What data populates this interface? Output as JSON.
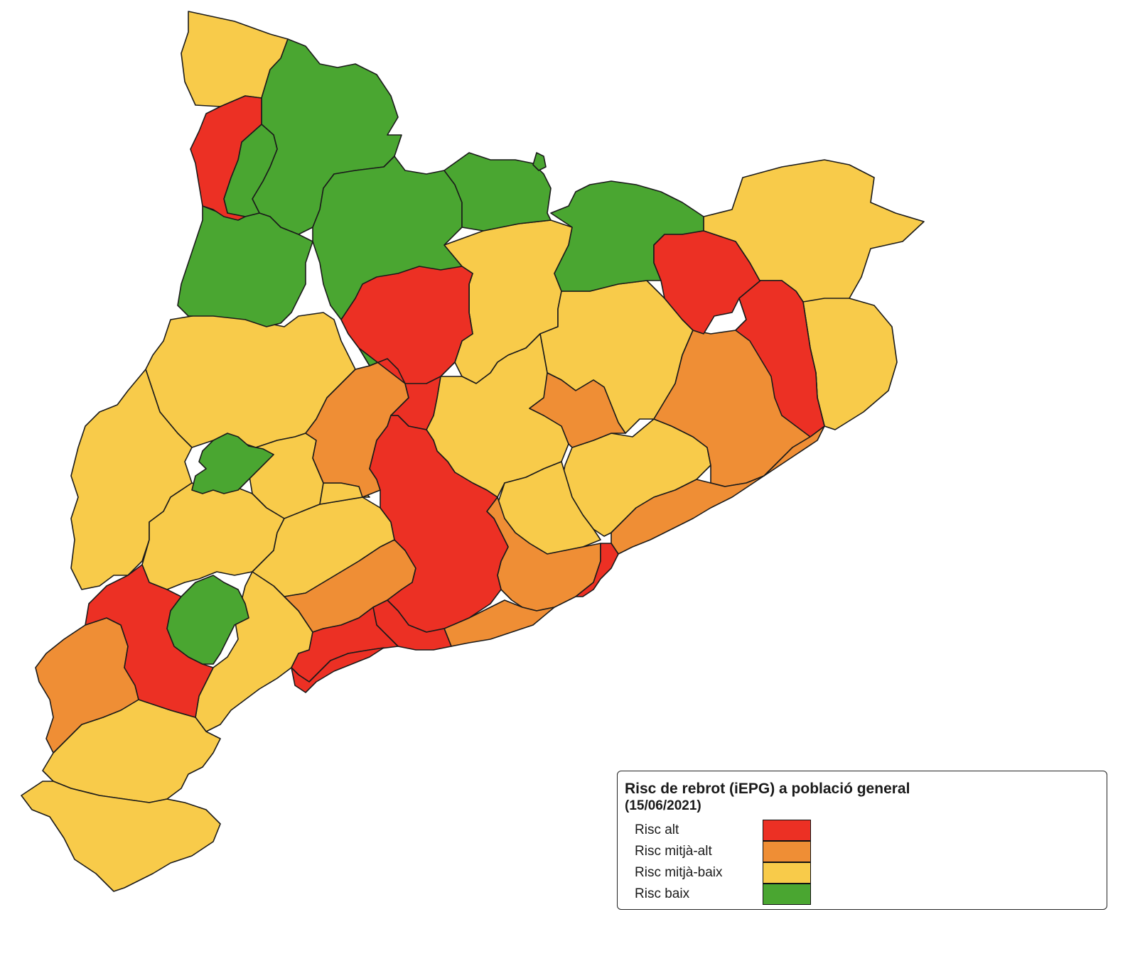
{
  "colors": {
    "alt": "#ec3024",
    "mitja_alt": "#ef8e35",
    "mitja_baix": "#f8cb4a",
    "baix": "#4aa631"
  },
  "legend": {
    "title": "Risc de rebrot (iEPG) a població general",
    "date": "(15/06/2021)",
    "items": [
      {
        "label": "Risc alt",
        "level": "alt",
        "color": "#ec3024"
      },
      {
        "label": "Risc mitjà-alt",
        "level": "mitja_alt",
        "color": "#ef8e35"
      },
      {
        "label": "Risc mitjà-baix",
        "level": "mitja_baix",
        "color": "#f8cb4a"
      },
      {
        "label": "Risc baix",
        "level": "baix",
        "color": "#4aa631"
      }
    ]
  },
  "regions": [
    {
      "name": "aran",
      "level": "mitja_baix"
    },
    {
      "name": "pallars-sobira",
      "level": "baix"
    },
    {
      "name": "alta-ribagorca",
      "level": "alt"
    },
    {
      "name": "pallars-jussa-nord",
      "level": "baix"
    },
    {
      "name": "pallars-jussa",
      "level": "baix"
    },
    {
      "name": "alt-urgell",
      "level": "baix"
    },
    {
      "name": "cerdanya",
      "level": "baix"
    },
    {
      "name": "ripolles",
      "level": "baix"
    },
    {
      "name": "garrotxa-nord",
      "level": "baix"
    },
    {
      "name": "alt-emporda",
      "level": "mitja_baix"
    },
    {
      "name": "garrotxa",
      "level": "alt"
    },
    {
      "name": "pla-de-l-estany",
      "level": "mitja_baix"
    },
    {
      "name": "girones",
      "level": "alt"
    },
    {
      "name": "baix-emporda",
      "level": "mitja_baix"
    },
    {
      "name": "solsones",
      "level": "alt"
    },
    {
      "name": "bergueda",
      "level": "mitja_baix"
    },
    {
      "name": "osona",
      "level": "mitja_baix"
    },
    {
      "name": "selva",
      "level": "mitja_alt"
    },
    {
      "name": "noguera",
      "level": "mitja_baix"
    },
    {
      "name": "segarra",
      "level": "mitja_alt"
    },
    {
      "name": "bages",
      "level": "mitja_baix"
    },
    {
      "name": "moianes",
      "level": "mitja_alt"
    },
    {
      "name": "valles-oriental",
      "level": "mitja_baix"
    },
    {
      "name": "maresme",
      "level": "mitja_alt"
    },
    {
      "name": "segria",
      "level": "mitja_baix"
    },
    {
      "name": "lleida",
      "level": "baix"
    },
    {
      "name": "pla-d-urgell",
      "level": "mitja_baix"
    },
    {
      "name": "urgell",
      "level": "mitja_baix"
    },
    {
      "name": "anoia",
      "level": "alt"
    },
    {
      "name": "valles-occidental",
      "level": "mitja_baix"
    },
    {
      "name": "garrigues",
      "level": "mitja_baix"
    },
    {
      "name": "conca-de-barbera",
      "level": "mitja_baix"
    },
    {
      "name": "alt-camp",
      "level": "mitja_alt"
    },
    {
      "name": "alt-penedes",
      "level": "alt"
    },
    {
      "name": "baix-llobregat",
      "level": "mitja_alt"
    },
    {
      "name": "barcelones",
      "level": "alt"
    },
    {
      "name": "baix-penedes",
      "level": "alt"
    },
    {
      "name": "garraf",
      "level": "mitja_alt"
    },
    {
      "name": "tarragones",
      "level": "alt"
    },
    {
      "name": "priorat",
      "level": "baix"
    },
    {
      "name": "ribera-d-ebre",
      "level": "alt"
    },
    {
      "name": "baix-camp",
      "level": "mitja_baix"
    },
    {
      "name": "terra-alta",
      "level": "mitja_alt"
    },
    {
      "name": "baix-ebre",
      "level": "mitja_baix"
    },
    {
      "name": "montsia",
      "level": "mitja_baix"
    }
  ]
}
